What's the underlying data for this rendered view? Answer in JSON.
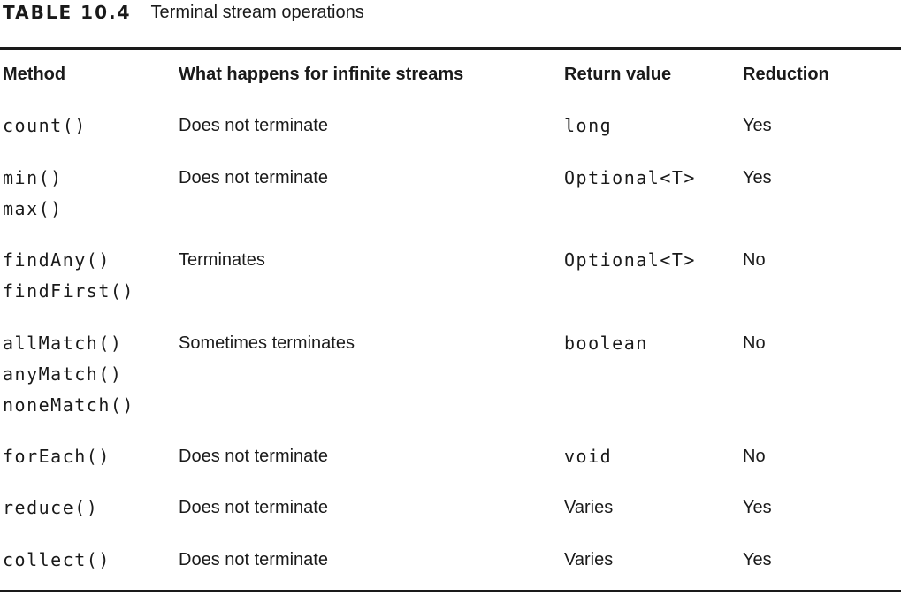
{
  "caption": {
    "label": "TABLE 10.4",
    "title": "Terminal stream operations"
  },
  "headers": {
    "method": "Method",
    "infinite": "What happens for infinite streams",
    "return_value": "Return value",
    "reduction": "Reduction"
  },
  "rows": [
    {
      "methods": [
        "count()"
      ],
      "infinite": "Does not terminate",
      "return_value": "long",
      "return_mono": true,
      "reduction": "Yes"
    },
    {
      "methods": [
        "min()",
        "max()"
      ],
      "infinite": "Does not terminate",
      "return_value": "Optional<T>",
      "return_mono": true,
      "reduction": "Yes"
    },
    {
      "methods": [
        "findAny()",
        "findFirst()"
      ],
      "infinite": "Terminates",
      "return_value": "Optional<T>",
      "return_mono": true,
      "reduction": "No"
    },
    {
      "methods": [
        "allMatch()",
        "anyMatch()",
        "noneMatch()"
      ],
      "infinite": "Sometimes terminates",
      "return_value": "boolean",
      "return_mono": true,
      "reduction": "No"
    },
    {
      "methods": [
        "forEach()"
      ],
      "infinite": "Does not terminate",
      "return_value": "void",
      "return_mono": true,
      "reduction": "No"
    },
    {
      "methods": [
        "reduce()"
      ],
      "infinite": "Does not terminate",
      "return_value": "Varies",
      "return_mono": false,
      "reduction": "Yes"
    },
    {
      "methods": [
        "collect()"
      ],
      "infinite": "Does not terminate",
      "return_value": "Varies",
      "return_mono": false,
      "reduction": "Yes"
    }
  ]
}
